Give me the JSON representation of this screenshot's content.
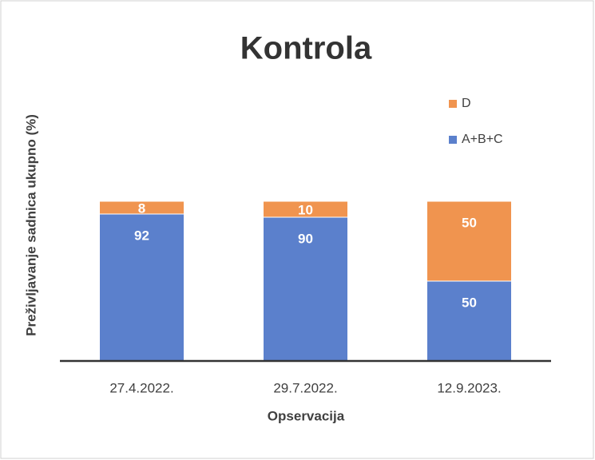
{
  "chart_data": {
    "type": "stacked_bar",
    "title": "Kontrola",
    "x_label": "Opservacija",
    "y_label": "Preživljavanje sadnica ukupno (%)",
    "categories": [
      "27.4.2022.",
      "29.7.2022.",
      "12.9.2023."
    ],
    "series": [
      {
        "name": "A+B+C",
        "color": "#5b80cc",
        "values": [
          92,
          90,
          50
        ]
      },
      {
        "name": "D",
        "color": "#f0944f",
        "values": [
          8,
          10,
          50
        ]
      }
    ],
    "ylim": [
      0,
      120
    ],
    "legend": "right"
  }
}
